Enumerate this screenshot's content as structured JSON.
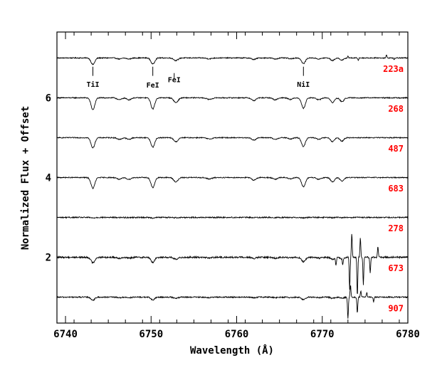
{
  "chart_data": {
    "type": "line",
    "xlabel": "Wavelength (Å)",
    "ylabel": "Normalized Flux + Offset",
    "xlim": [
      6739,
      6780
    ],
    "ylim": [
      0.35,
      7.65
    ],
    "x_ticks": [
      6740,
      6750,
      6760,
      6770,
      6780
    ],
    "y_ticks": [
      2,
      4,
      6
    ],
    "grid": false,
    "label_color": "#ff0000",
    "line_color": "#000000",
    "line_annotations": [
      {
        "label": "TiI",
        "x": 6743.2,
        "y_top": 6.78,
        "y_bottom": 6.55,
        "label_y": 6.28
      },
      {
        "label": "FeI",
        "x": 6750.2,
        "y_top": 6.78,
        "y_bottom": 6.55,
        "label_y": 6.26
      },
      {
        "label": "FeI",
        "x": 6752.7,
        "y_top": 6.62,
        "y_bottom": 6.48,
        "label_y": 6.39
      },
      {
        "label": "NiI",
        "x": 6767.8,
        "y_top": 6.78,
        "y_bottom": 6.55,
        "label_y": 6.28
      }
    ],
    "series": [
      {
        "name": "223a",
        "offset": 7.0,
        "depth_scale": 0.55,
        "noise": 0.012,
        "label_y": 6.72,
        "features": [
          {
            "x": 6773.0,
            "amp": 0.05
          },
          {
            "x": 6774.2,
            "amp": -0.06
          },
          {
            "x": 6777.5,
            "amp": 0.07
          },
          {
            "x": 6778.4,
            "amp": -0.05
          }
        ]
      },
      {
        "name": "268",
        "offset": 6.0,
        "depth_scale": 1.0,
        "noise": 0.012,
        "label_y": 5.72,
        "features": []
      },
      {
        "name": "487",
        "offset": 5.0,
        "depth_scale": 0.85,
        "noise": 0.012,
        "label_y": 4.72,
        "features": []
      },
      {
        "name": "683",
        "offset": 4.0,
        "depth_scale": 0.9,
        "noise": 0.012,
        "label_y": 3.72,
        "features": []
      },
      {
        "name": "278",
        "offset": 3.0,
        "depth_scale": 0.05,
        "noise": 0.015,
        "label_y": 2.72,
        "features": []
      },
      {
        "name": "673",
        "offset": 2.0,
        "depth_scale": 0.45,
        "noise": 0.02,
        "label_y": 1.72,
        "features": [
          {
            "x": 6773.2,
            "amp": -0.8
          },
          {
            "x": 6773.45,
            "amp": 0.6
          },
          {
            "x": 6774.1,
            "amp": -1.0
          },
          {
            "x": 6774.45,
            "amp": 0.5
          },
          {
            "x": 6774.8,
            "amp": -0.7
          },
          {
            "x": 6775.6,
            "amp": -0.4
          },
          {
            "x": 6776.5,
            "amp": 0.25
          },
          {
            "x": 6771.6,
            "amp": -0.2
          },
          {
            "x": 6772.4,
            "amp": -0.15
          }
        ]
      },
      {
        "name": "907",
        "offset": 1.0,
        "depth_scale": 0.25,
        "noise": 0.015,
        "label_y": 0.72,
        "features": [
          {
            "x": 6773.0,
            "amp": -0.55
          },
          {
            "x": 6773.3,
            "amp": 0.3
          },
          {
            "x": 6774.1,
            "amp": -0.4
          },
          {
            "x": 6774.5,
            "amp": 0.15
          },
          {
            "x": 6775.2,
            "amp": 0.12
          },
          {
            "x": 6776.0,
            "amp": -0.12
          }
        ]
      }
    ],
    "absorption_lines": [
      {
        "x": 6743.2,
        "depth": 0.3,
        "width": 0.22
      },
      {
        "x": 6750.2,
        "depth": 0.28,
        "width": 0.22
      },
      {
        "x": 6752.9,
        "depth": 0.12,
        "width": 0.25
      },
      {
        "x": 6746.3,
        "depth": 0.05,
        "width": 0.25
      },
      {
        "x": 6747.4,
        "depth": 0.05,
        "width": 0.25
      },
      {
        "x": 6756.8,
        "depth": 0.04,
        "width": 0.3
      },
      {
        "x": 6762.0,
        "depth": 0.07,
        "width": 0.25
      },
      {
        "x": 6764.5,
        "depth": 0.05,
        "width": 0.25
      },
      {
        "x": 6766.3,
        "depth": 0.04,
        "width": 0.25
      },
      {
        "x": 6767.8,
        "depth": 0.26,
        "width": 0.22
      },
      {
        "x": 6769.6,
        "depth": 0.05,
        "width": 0.25
      },
      {
        "x": 6771.2,
        "depth": 0.12,
        "width": 0.22
      },
      {
        "x": 6772.3,
        "depth": 0.1,
        "width": 0.22
      }
    ]
  }
}
